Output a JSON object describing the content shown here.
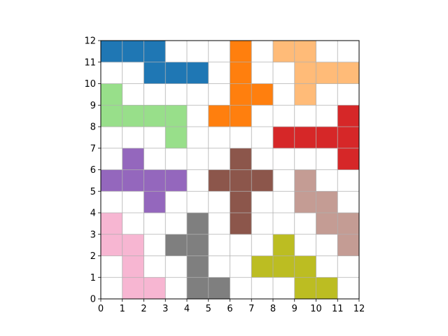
{
  "board": {
    "size": 12,
    "x_ticks": [
      "0",
      "1",
      "2",
      "3",
      "4",
      "5",
      "6",
      "7",
      "8",
      "9",
      "10",
      "11",
      "12"
    ],
    "y_ticks": [
      "0",
      "1",
      "2",
      "3",
      "4",
      "5",
      "6",
      "7",
      "8",
      "9",
      "10",
      "11",
      "12"
    ],
    "grid": true,
    "grid_color": "#b0b0b0",
    "background": "#ffffff"
  },
  "pieces": [
    {
      "name": "blue-piece",
      "color": "#1f77b4",
      "cells": [
        [
          0,
          11
        ],
        [
          1,
          11
        ],
        [
          2,
          11
        ],
        [
          2,
          10
        ],
        [
          3,
          10
        ],
        [
          4,
          10
        ]
      ]
    },
    {
      "name": "orange-piece",
      "color": "#ff7f0e",
      "cells": [
        [
          6,
          11
        ],
        [
          6,
          10
        ],
        [
          6,
          9
        ],
        [
          7,
          9
        ],
        [
          6,
          8
        ],
        [
          5,
          8
        ]
      ]
    },
    {
      "name": "light-orange-piece",
      "color": "#ffbb78",
      "cells": [
        [
          8,
          11
        ],
        [
          9,
          11
        ],
        [
          9,
          10
        ],
        [
          10,
          10
        ],
        [
          11,
          10
        ],
        [
          9,
          9
        ]
      ]
    },
    {
      "name": "light-green-piece",
      "color": "#98df8a",
      "cells": [
        [
          0,
          9
        ],
        [
          0,
          8
        ],
        [
          1,
          8
        ],
        [
          2,
          8
        ],
        [
          3,
          8
        ],
        [
          3,
          7
        ]
      ]
    },
    {
      "name": "red-piece",
      "color": "#d62728",
      "cells": [
        [
          11,
          8
        ],
        [
          8,
          7
        ],
        [
          9,
          7
        ],
        [
          10,
          7
        ],
        [
          11,
          7
        ],
        [
          11,
          6
        ]
      ]
    },
    {
      "name": "purple-piece",
      "color": "#9467bd",
      "cells": [
        [
          1,
          6
        ],
        [
          0,
          5
        ],
        [
          1,
          5
        ],
        [
          2,
          5
        ],
        [
          3,
          5
        ],
        [
          2,
          4
        ]
      ]
    },
    {
      "name": "brown-piece",
      "color": "#8c564b",
      "cells": [
        [
          6,
          6
        ],
        [
          5,
          5
        ],
        [
          6,
          5
        ],
        [
          7,
          5
        ],
        [
          6,
          4
        ],
        [
          6,
          3
        ]
      ]
    },
    {
      "name": "light-brown-piece",
      "color": "#c49c94",
      "cells": [
        [
          9,
          5
        ],
        [
          9,
          4
        ],
        [
          10,
          4
        ],
        [
          10,
          3
        ],
        [
          11,
          3
        ],
        [
          11,
          2
        ]
      ]
    },
    {
      "name": "pink-piece",
      "color": "#f7b6d2",
      "cells": [
        [
          0,
          3
        ],
        [
          0,
          2
        ],
        [
          1,
          2
        ],
        [
          1,
          1
        ],
        [
          1,
          0
        ],
        [
          2,
          0
        ]
      ]
    },
    {
      "name": "gray-piece",
      "color": "#7f7f7f",
      "cells": [
        [
          4,
          3
        ],
        [
          3,
          2
        ],
        [
          4,
          2
        ],
        [
          4,
          1
        ],
        [
          4,
          0
        ],
        [
          5,
          0
        ]
      ]
    },
    {
      "name": "olive-piece",
      "color": "#bcbd22",
      "cells": [
        [
          8,
          2
        ],
        [
          7,
          1
        ],
        [
          8,
          1
        ],
        [
          9,
          1
        ],
        [
          9,
          0
        ],
        [
          10,
          0
        ]
      ]
    }
  ]
}
